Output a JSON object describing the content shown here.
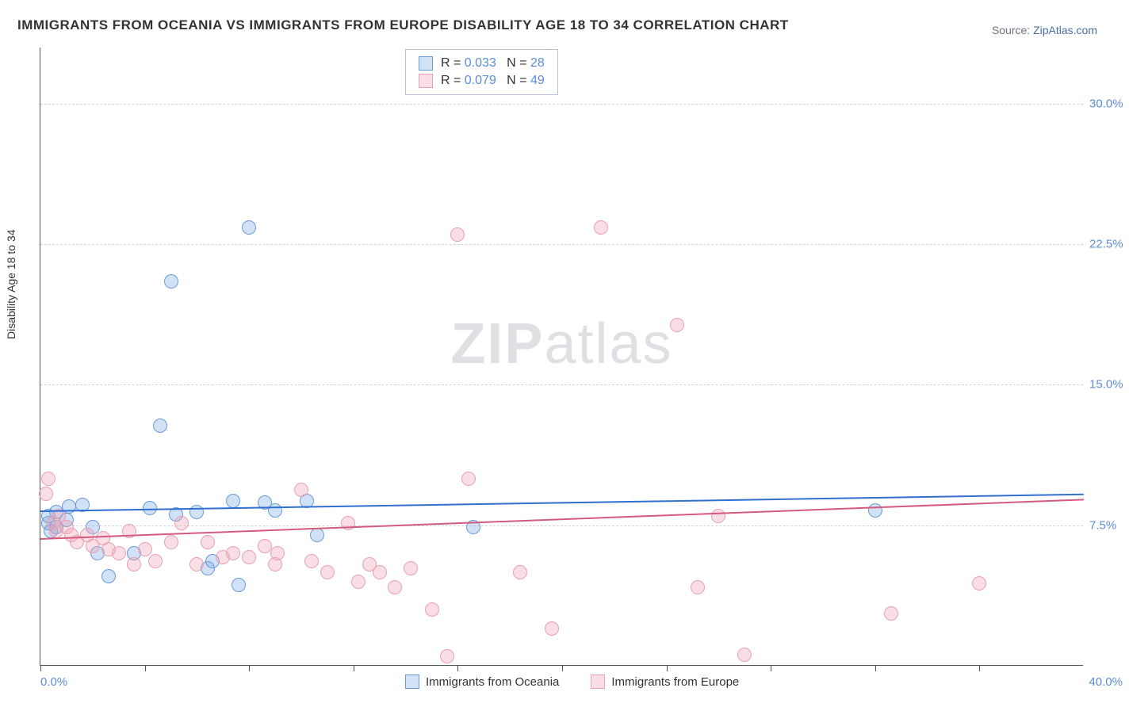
{
  "title": "IMMIGRANTS FROM OCEANIA VS IMMIGRANTS FROM EUROPE DISABILITY AGE 18 TO 34 CORRELATION CHART",
  "source": {
    "label": "Source: ",
    "link": "ZipAtlas.com"
  },
  "yaxis_title": "Disability Age 18 to 34",
  "watermark": {
    "part1": "ZIP",
    "part2": "atlas"
  },
  "chart": {
    "type": "scatter-with-trendlines",
    "background_color": "#ffffff",
    "grid_color": "#d1d5db",
    "axis_color": "#555555",
    "label_color": "#5b8dd6",
    "xlim": [
      0,
      40
    ],
    "ylim": [
      0,
      33
    ],
    "xtick_positions": [
      0,
      4,
      8,
      12,
      16,
      20,
      24,
      28,
      32,
      36
    ],
    "ytick_labels": [
      {
        "value": 7.5,
        "text": "7.5%"
      },
      {
        "value": 15.0,
        "text": "15.0%"
      },
      {
        "value": 22.5,
        "text": "22.5%"
      },
      {
        "value": 30.0,
        "text": "30.0%"
      }
    ],
    "x_axis_min_label": "0.0%",
    "x_axis_max_label": "40.0%",
    "marker_radius": 9,
    "marker_border_width": 1.5,
    "trend_line_width": 2,
    "series": [
      {
        "name": "Immigrants from Oceania",
        "fill": "rgba(122,168,228,0.35)",
        "stroke": "#6b9bd6",
        "trend_color": "#2f6fd0",
        "stats": {
          "R": "0.033",
          "N": "28"
        },
        "trend": {
          "x0": 0,
          "y0": 8.3,
          "x1": 40,
          "y1": 9.2
        },
        "points": [
          {
            "x": 0.3,
            "y": 7.6
          },
          {
            "x": 0.3,
            "y": 8.0
          },
          {
            "x": 0.4,
            "y": 7.2
          },
          {
            "x": 0.6,
            "y": 7.4
          },
          {
            "x": 0.6,
            "y": 8.2
          },
          {
            "x": 1.0,
            "y": 7.8
          },
          {
            "x": 1.1,
            "y": 8.5
          },
          {
            "x": 1.6,
            "y": 8.6
          },
          {
            "x": 2.0,
            "y": 7.4
          },
          {
            "x": 2.2,
            "y": 6.0
          },
          {
            "x": 2.6,
            "y": 4.8
          },
          {
            "x": 3.6,
            "y": 6.0
          },
          {
            "x": 4.2,
            "y": 8.4
          },
          {
            "x": 4.6,
            "y": 12.8
          },
          {
            "x": 5.0,
            "y": 20.5
          },
          {
            "x": 5.2,
            "y": 8.1
          },
          {
            "x": 6.0,
            "y": 8.2
          },
          {
            "x": 6.4,
            "y": 5.2
          },
          {
            "x": 6.6,
            "y": 5.6
          },
          {
            "x": 7.4,
            "y": 8.8
          },
          {
            "x": 7.6,
            "y": 4.3
          },
          {
            "x": 8.0,
            "y": 23.4
          },
          {
            "x": 8.6,
            "y": 8.7
          },
          {
            "x": 9.0,
            "y": 8.3
          },
          {
            "x": 10.2,
            "y": 8.8
          },
          {
            "x": 10.6,
            "y": 7.0
          },
          {
            "x": 16.6,
            "y": 7.4
          },
          {
            "x": 32.0,
            "y": 8.3
          }
        ]
      },
      {
        "name": "Immigrants from Europe",
        "fill": "rgba(238,162,180,0.35)",
        "stroke": "#e8a0b2",
        "trend_color": "#d45a80",
        "stats": {
          "R": "0.079",
          "N": "49"
        },
        "trend": {
          "x0": 0,
          "y0": 6.8,
          "x1": 40,
          "y1": 8.9
        },
        "points": [
          {
            "x": 0.2,
            "y": 9.2
          },
          {
            "x": 0.3,
            "y": 10.0
          },
          {
            "x": 0.5,
            "y": 7.6
          },
          {
            "x": 0.6,
            "y": 7.2
          },
          {
            "x": 0.7,
            "y": 8.0
          },
          {
            "x": 1.0,
            "y": 7.4
          },
          {
            "x": 1.2,
            "y": 7.0
          },
          {
            "x": 1.4,
            "y": 6.6
          },
          {
            "x": 1.8,
            "y": 7.0
          },
          {
            "x": 2.0,
            "y": 6.4
          },
          {
            "x": 2.4,
            "y": 6.8
          },
          {
            "x": 2.6,
            "y": 6.2
          },
          {
            "x": 3.0,
            "y": 6.0
          },
          {
            "x": 3.4,
            "y": 7.2
          },
          {
            "x": 3.6,
            "y": 5.4
          },
          {
            "x": 4.0,
            "y": 6.2
          },
          {
            "x": 4.4,
            "y": 5.6
          },
          {
            "x": 5.0,
            "y": 6.6
          },
          {
            "x": 5.4,
            "y": 7.6
          },
          {
            "x": 6.0,
            "y": 5.4
          },
          {
            "x": 6.4,
            "y": 6.6
          },
          {
            "x": 7.0,
            "y": 5.8
          },
          {
            "x": 7.4,
            "y": 6.0
          },
          {
            "x": 8.0,
            "y": 5.8
          },
          {
            "x": 8.6,
            "y": 6.4
          },
          {
            "x": 9.0,
            "y": 5.4
          },
          {
            "x": 9.1,
            "y": 6.0
          },
          {
            "x": 10.0,
            "y": 9.4
          },
          {
            "x": 10.4,
            "y": 5.6
          },
          {
            "x": 11.0,
            "y": 5.0
          },
          {
            "x": 11.8,
            "y": 7.6
          },
          {
            "x": 12.2,
            "y": 4.5
          },
          {
            "x": 12.6,
            "y": 5.4
          },
          {
            "x": 13.0,
            "y": 5.0
          },
          {
            "x": 13.6,
            "y": 4.2
          },
          {
            "x": 14.2,
            "y": 5.2
          },
          {
            "x": 15.0,
            "y": 3.0
          },
          {
            "x": 15.6,
            "y": 0.5
          },
          {
            "x": 16.0,
            "y": 23.0
          },
          {
            "x": 16.4,
            "y": 10.0
          },
          {
            "x": 18.4,
            "y": 5.0
          },
          {
            "x": 19.6,
            "y": 2.0
          },
          {
            "x": 21.5,
            "y": 23.4
          },
          {
            "x": 24.4,
            "y": 18.2
          },
          {
            "x": 25.2,
            "y": 4.2
          },
          {
            "x": 26.0,
            "y": 8.0
          },
          {
            "x": 27.0,
            "y": 0.6
          },
          {
            "x": 32.6,
            "y": 2.8
          },
          {
            "x": 36.0,
            "y": 4.4
          }
        ]
      }
    ]
  },
  "stats_box": {
    "border_color": "#b8c4d9"
  }
}
